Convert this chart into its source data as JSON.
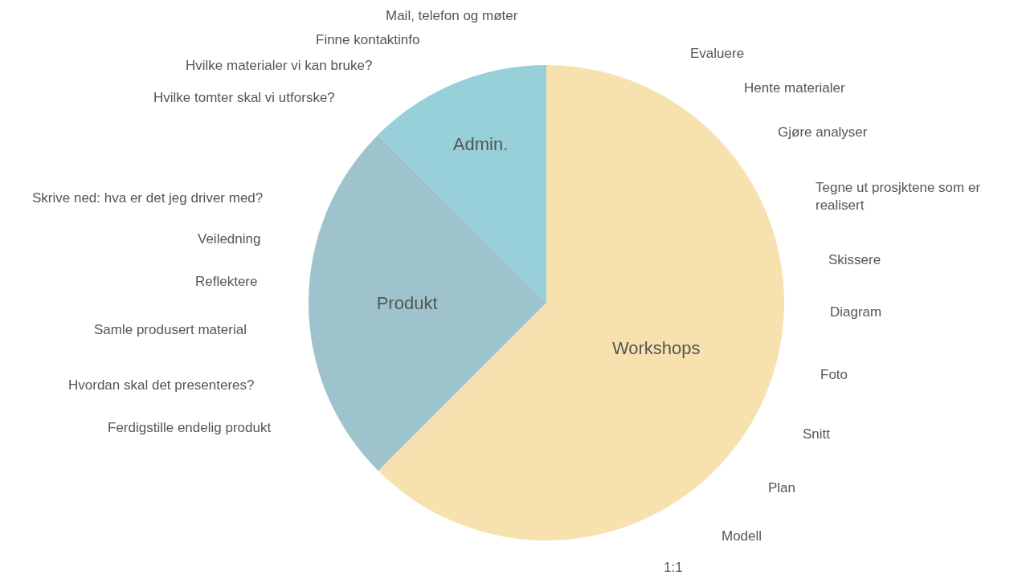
{
  "chart_data": {
    "type": "pie",
    "categories": [
      "Workshops",
      "Produkt",
      "Admin."
    ],
    "values": [
      62.5,
      25,
      12.5
    ],
    "colors": [
      "#f7e2af",
      "#9fc3cc",
      "#98d0d9"
    ],
    "legend": false,
    "annotations": [
      "Mail, telefon og møter",
      "Finne kontaktinfo",
      "Hvilke materialer vi kan bruke?",
      "Hvilke tomter skal vi utforske?",
      "Evaluere",
      "Hente materialer",
      "Gjøre analyser",
      "Tegne ut prosjktene som er realisert",
      "Skissere",
      "Diagram",
      "Foto",
      "Snitt",
      "Plan",
      "Modell",
      "1:1",
      "Skrive ned: hva er det jeg driver med?",
      "Veiledning",
      "Reflektere",
      "Samle produsert material",
      "Hvordan skal det presenteres?",
      "Ferdigstille endelig produkt"
    ]
  }
}
